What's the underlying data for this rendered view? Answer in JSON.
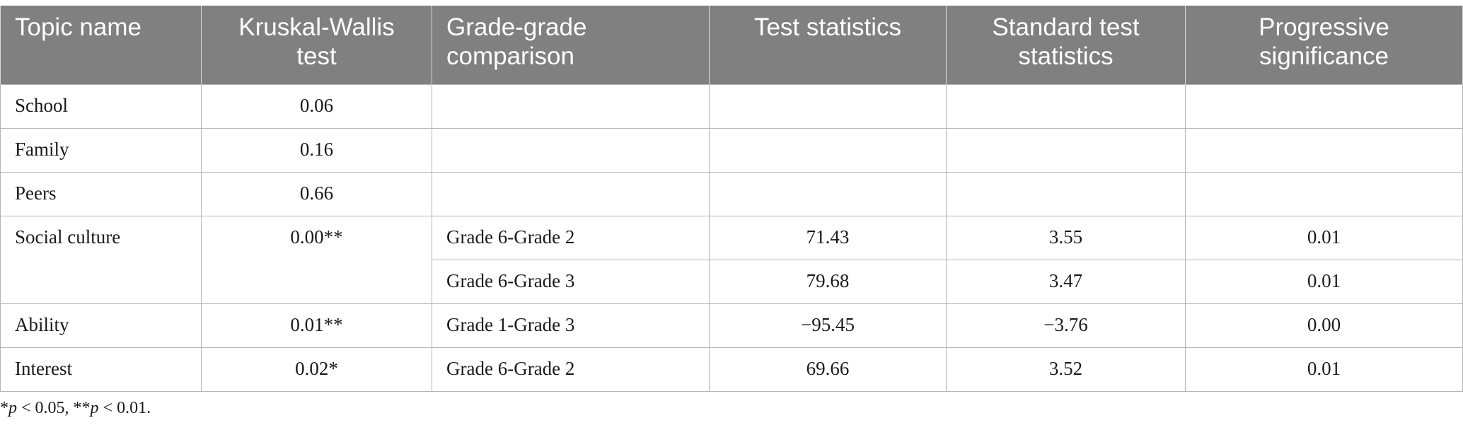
{
  "table": {
    "headers": [
      "Topic name",
      "Kruskal-Wallis test",
      "Grade-grade comparison",
      "Test statistics",
      "Standard test statistics",
      "Progressive significance"
    ],
    "rows": {
      "school": {
        "topic": "School",
        "kw": "0.06"
      },
      "family": {
        "topic": "Family",
        "kw": "0.16"
      },
      "peers": {
        "topic": "Peers",
        "kw": "0.66"
      },
      "social": {
        "topic": "Social culture",
        "kw": "0.00**",
        "comparisons": [
          {
            "grades": "Grade 6-Grade 2",
            "test": "71.43",
            "std": "3.55",
            "sig": "0.01"
          },
          {
            "grades": "Grade 6-Grade 3",
            "test": "79.68",
            "std": "3.47",
            "sig": "0.01"
          }
        ]
      },
      "ability": {
        "topic": "Ability",
        "kw": "0.01**",
        "comparisons": [
          {
            "grades": "Grade 1-Grade 3",
            "test": "−95.45",
            "std": "−3.76",
            "sig": "0.00"
          }
        ]
      },
      "interest": {
        "topic": "Interest",
        "kw": "0.02*",
        "comparisons": [
          {
            "grades": "Grade 6-Grade 2",
            "test": "69.66",
            "std": "3.52",
            "sig": "0.01"
          }
        ]
      }
    }
  },
  "footnote": {
    "star1": "*",
    "p1": "p",
    "rest1": " < 0.05, **",
    "p2": "p",
    "rest2": " < 0.01."
  }
}
